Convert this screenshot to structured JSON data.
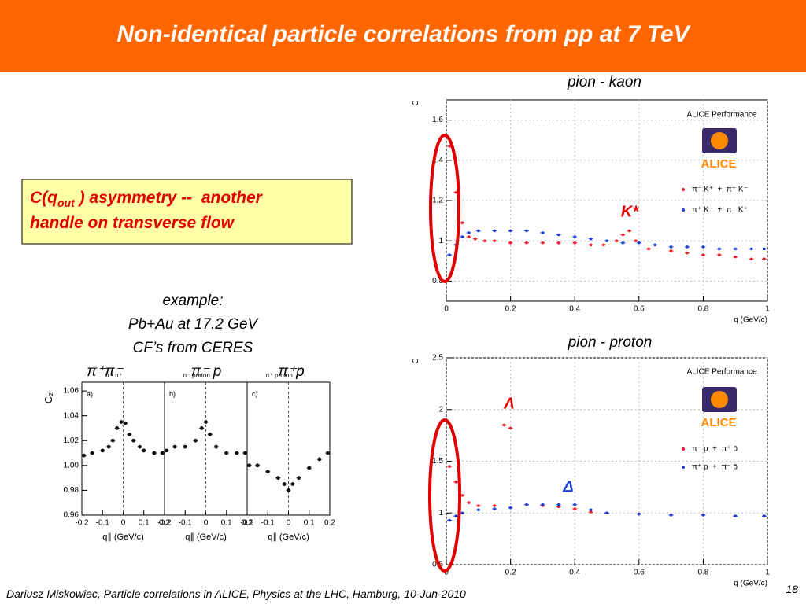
{
  "header": {
    "title": "Non-identical particle correlations from pp at 7 TeV"
  },
  "callout": {
    "line1_start": "C(q",
    "subscript": "out",
    "line1_end": " ) asymmetry --  another",
    "line2": "handle on transverse flow"
  },
  "example": {
    "lines": [
      "example:",
      "Pb+Au at 17.2 GeV",
      "CF’s from CERES"
    ],
    "labels": [
      "π⁺π⁻",
      "π⁻ p",
      "π⁺p"
    ]
  },
  "footer": {
    "text": "Dariusz Miskowiec, Particle correlations in ALICE, Physics at the LHC, Hamburg, 10-Jun-2010",
    "page": "18"
  },
  "chart_data": [
    {
      "type": "scatter",
      "title": "pion - kaon",
      "xlabel": "q (GeV/c)",
      "ylabel": "C",
      "grid": true,
      "annotations": [
        "ALICE Performance",
        "ALICE",
        "K*"
      ],
      "xlim": [
        0,
        1
      ],
      "ylim": [
        0.7,
        1.7
      ],
      "xticks": [
        0,
        0.2,
        0.4,
        0.6,
        0.8,
        1
      ],
      "yticks": [
        0.8,
        1,
        1.2,
        1.4,
        1.6
      ],
      "series": [
        {
          "name": "π⁻ K⁺  +  π⁺ K⁻",
          "color": "#e8202a",
          "x": [
            0.01,
            0.03,
            0.05,
            0.07,
            0.09,
            0.12,
            0.15,
            0.2,
            0.25,
            0.3,
            0.35,
            0.4,
            0.45,
            0.49,
            0.53,
            0.55,
            0.57,
            0.59,
            0.63,
            0.7,
            0.75,
            0.8,
            0.85,
            0.9,
            0.95,
            0.99
          ],
          "values": [
            1.47,
            1.24,
            1.09,
            1.02,
            1.01,
            1.0,
            1.0,
            0.99,
            0.99,
            0.99,
            0.99,
            0.99,
            0.98,
            0.98,
            1.0,
            1.03,
            1.05,
            1.0,
            0.96,
            0.95,
            0.94,
            0.93,
            0.93,
            0.92,
            0.91,
            0.91
          ]
        },
        {
          "name": "π⁺ K⁻  +  π⁻ K⁺",
          "color": "#1f3fd8",
          "x": [
            0.01,
            0.03,
            0.05,
            0.07,
            0.1,
            0.15,
            0.2,
            0.25,
            0.3,
            0.35,
            0.4,
            0.45,
            0.5,
            0.55,
            0.6,
            0.65,
            0.7,
            0.75,
            0.8,
            0.85,
            0.9,
            0.95,
            0.99
          ],
          "values": [
            0.93,
            0.98,
            1.02,
            1.04,
            1.05,
            1.05,
            1.05,
            1.05,
            1.04,
            1.03,
            1.02,
            1.01,
            1.0,
            0.99,
            0.99,
            0.98,
            0.97,
            0.97,
            0.97,
            0.96,
            0.96,
            0.96,
            0.96
          ]
        }
      ]
    },
    {
      "type": "scatter",
      "title": "pion - proton",
      "xlabel": "q (GeV/c)",
      "ylabel": "C",
      "grid": true,
      "annotations": [
        "ALICE Performance",
        "ALICE",
        "Λ",
        "Δ"
      ],
      "xlim": [
        0,
        1
      ],
      "ylim": [
        0.5,
        2.5
      ],
      "xticks": [
        0,
        0.2,
        0.4,
        0.6,
        0.8,
        1
      ],
      "yticks": [
        0.5,
        1,
        1.5,
        2,
        2.5
      ],
      "series": [
        {
          "name": "π⁻ p  +  π⁺ p̄",
          "color": "#e8202a",
          "x": [
            0.01,
            0.03,
            0.05,
            0.07,
            0.1,
            0.15,
            0.18,
            0.2,
            0.25,
            0.3,
            0.35,
            0.4,
            0.45,
            0.5,
            0.6,
            0.7,
            0.8,
            0.9,
            0.99
          ],
          "values": [
            1.45,
            1.3,
            1.17,
            1.1,
            1.07,
            1.07,
            1.85,
            1.82,
            1.08,
            1.07,
            1.06,
            1.04,
            1.01,
            1.0,
            0.99,
            0.98,
            0.98,
            0.97,
            0.97
          ]
        },
        {
          "name": "π⁺ p  +  π⁻ p̄",
          "color": "#1f3fd8",
          "x": [
            0.01,
            0.03,
            0.05,
            0.1,
            0.15,
            0.2,
            0.25,
            0.3,
            0.35,
            0.4,
            0.45,
            0.5,
            0.6,
            0.7,
            0.8,
            0.9,
            0.99
          ],
          "values": [
            0.93,
            0.97,
            1.0,
            1.03,
            1.04,
            1.05,
            1.08,
            1.08,
            1.08,
            1.08,
            1.03,
            1.0,
            0.99,
            0.98,
            0.98,
            0.97,
            0.97
          ]
        }
      ]
    },
    {
      "type": "scatter",
      "subtitle": "π⁻ π⁺",
      "panel": "a)",
      "xlabel": "q∥ (GeV/c)",
      "ylabel": "C₂",
      "xlim": [
        -0.2,
        0.2
      ],
      "ylim": [
        0.96,
        1.067
      ],
      "xticks": [
        -0.2,
        -0.1,
        0,
        0.1,
        0.2
      ],
      "yticks": [
        0.96,
        0.98,
        {
          "value": 1,
          "label": "1.00"
        },
        1.02,
        1.04,
        1.06
      ],
      "series": [
        {
          "color": "#111111",
          "x": [
            -0.19,
            -0.15,
            -0.1,
            -0.07,
            -0.05,
            -0.03,
            -0.01,
            0.01,
            0.03,
            0.05,
            0.08,
            0.1,
            0.15,
            0.19
          ],
          "values": [
            1.008,
            1.01,
            1.012,
            1.015,
            1.02,
            1.03,
            1.035,
            1.034,
            1.025,
            1.02,
            1.015,
            1.012,
            1.01,
            1.01
          ]
        }
      ]
    },
    {
      "type": "scatter",
      "subtitle": "π⁻ proton",
      "panel": "b)",
      "xlabel": "q∥ (GeV/c)",
      "xlim": [
        -0.2,
        0.2
      ],
      "ylim": [
        0.96,
        1.067
      ],
      "xticks": [
        -0.2,
        -0.1,
        0,
        0.1,
        0.2
      ],
      "series": [
        {
          "color": "#111111",
          "x": [
            -0.19,
            -0.15,
            -0.1,
            -0.05,
            -0.02,
            0,
            0.02,
            0.05,
            0.1,
            0.15,
            0.19
          ],
          "values": [
            1.012,
            1.015,
            1.015,
            1.02,
            1.03,
            1.035,
            1.025,
            1.015,
            1.01,
            1.01,
            1.01
          ]
        }
      ]
    },
    {
      "type": "scatter",
      "subtitle": "π⁺ proton",
      "panel": "c)",
      "xlabel": "q∥ (GeV/c)",
      "xlim": [
        -0.2,
        0.2
      ],
      "ylim": [
        0.96,
        1.067
      ],
      "xticks": [
        -0.2,
        -0.1,
        0,
        0.1,
        0.2
      ],
      "series": [
        {
          "color": "#111111",
          "x": [
            -0.19,
            -0.15,
            -0.1,
            -0.05,
            -0.02,
            0,
            0.02,
            0.05,
            0.1,
            0.15,
            0.19
          ],
          "values": [
            1.0,
            1.0,
            0.995,
            0.99,
            0.985,
            0.98,
            0.985,
            0.99,
            0.998,
            1.005,
            1.01
          ]
        }
      ]
    }
  ]
}
